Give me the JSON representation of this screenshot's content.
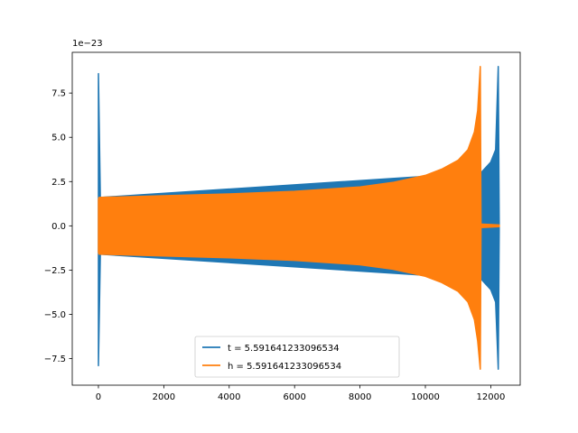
{
  "chart_data": {
    "type": "line",
    "title": "",
    "xlabel": "",
    "ylabel": "",
    "offset_label": "1e−23",
    "xlim": [
      -800,
      12900
    ],
    "ylim": [
      -9.0,
      9.8
    ],
    "xticks": [
      0,
      2000,
      4000,
      6000,
      8000,
      10000,
      12000
    ],
    "xtick_labels": [
      "0",
      "2000",
      "4000",
      "6000",
      "8000",
      "10000",
      "12000"
    ],
    "yticks": [
      -7.5,
      -5.0,
      -2.5,
      0.0,
      2.5,
      5.0,
      7.5
    ],
    "ytick_labels": [
      "−7.5",
      "−5.0",
      "−2.5",
      "0.0",
      "2.5",
      "5.0",
      "7.5"
    ],
    "grid": false,
    "legend": {
      "position": "bottom-center"
    },
    "series": [
      {
        "name": "t = 5.591641233096534",
        "color": "#1f77b4",
        "envelope": [
          {
            "x": 0,
            "upper": 8.6,
            "lower": -7.9
          },
          {
            "x": 60,
            "upper": 1.6,
            "lower": -1.6
          },
          {
            "x": 11700,
            "upper": 3.0,
            "lower": -3.0
          },
          {
            "x": 12000,
            "upper": 3.6,
            "lower": -3.6
          },
          {
            "x": 12150,
            "upper": 4.3,
            "lower": -4.3
          },
          {
            "x": 12230,
            "upper": 9.0,
            "lower": -8.1
          },
          {
            "x": 12260,
            "upper": 0.0,
            "lower": 0.0
          }
        ]
      },
      {
        "name": "h = 5.591641233096534",
        "color": "#ff7f0e",
        "envelope": [
          {
            "x": 0,
            "upper": 1.5,
            "lower": -1.5
          },
          {
            "x": 20,
            "upper": 1.6,
            "lower": -1.6
          },
          {
            "x": 2000,
            "upper": 1.7,
            "lower": -1.7
          },
          {
            "x": 4000,
            "upper": 1.8,
            "lower": -1.8
          },
          {
            "x": 6000,
            "upper": 1.95,
            "lower": -1.95
          },
          {
            "x": 8000,
            "upper": 2.2,
            "lower": -2.2
          },
          {
            "x": 9000,
            "upper": 2.45,
            "lower": -2.45
          },
          {
            "x": 10000,
            "upper": 2.85,
            "lower": -2.85
          },
          {
            "x": 10500,
            "upper": 3.2,
            "lower": -3.2
          },
          {
            "x": 11000,
            "upper": 3.7,
            "lower": -3.7
          },
          {
            "x": 11300,
            "upper": 4.3,
            "lower": -4.3
          },
          {
            "x": 11500,
            "upper": 5.3,
            "lower": -5.3
          },
          {
            "x": 11600,
            "upper": 6.5,
            "lower": -6.5
          },
          {
            "x": 11680,
            "upper": 9.0,
            "lower": -8.1
          },
          {
            "x": 11700,
            "upper": 0.1,
            "lower": -0.1
          },
          {
            "x": 12260,
            "upper": 0.05,
            "lower": -0.05
          }
        ]
      }
    ]
  }
}
